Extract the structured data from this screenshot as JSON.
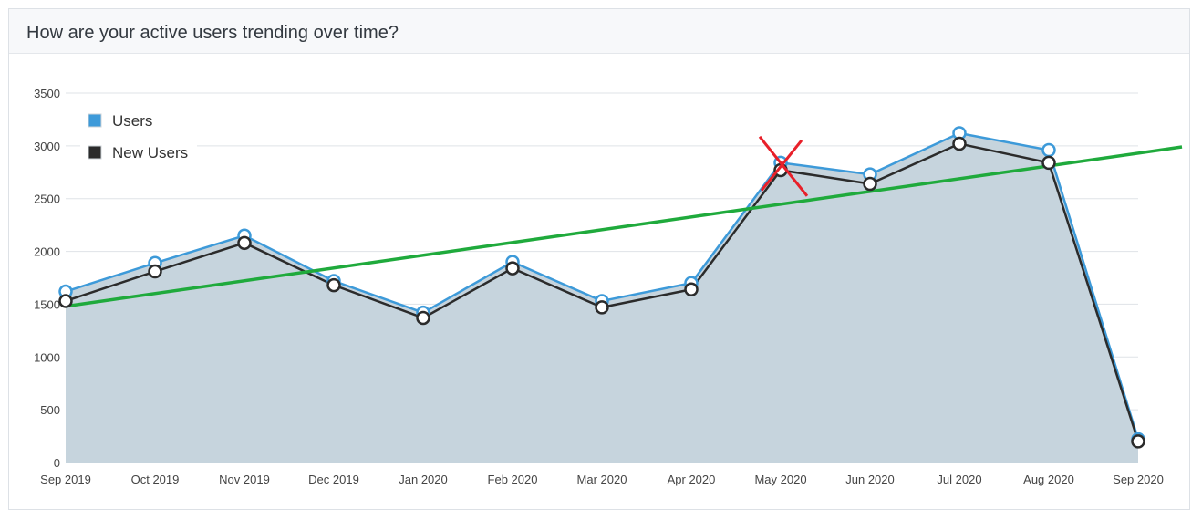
{
  "panel": {
    "title": "How are your active users trending over time?"
  },
  "chart_data": {
    "type": "area",
    "title": "How are your active users trending over time?",
    "categories": [
      "Sep 2019",
      "Oct 2019",
      "Nov 2019",
      "Dec 2019",
      "Jan 2020",
      "Feb 2020",
      "Mar 2020",
      "Apr 2020",
      "May 2020",
      "Jun 2020",
      "Jul 2020",
      "Aug 2020",
      "Sep 2020"
    ],
    "series": [
      {
        "name": "Users",
        "color": "#3d9ad9",
        "values": [
          1620,
          1890,
          2150,
          1720,
          1420,
          1900,
          1530,
          1700,
          2840,
          2730,
          3120,
          2960,
          220
        ]
      },
      {
        "name": "New Users",
        "color": "#2b2b2b",
        "values": [
          1530,
          1810,
          2080,
          1680,
          1370,
          1840,
          1470,
          1640,
          2770,
          2640,
          3020,
          2840,
          200
        ]
      }
    ],
    "trendline": {
      "color": "#1faa3c",
      "start": 1480,
      "end": 2990
    },
    "marker": {
      "category": "May 2020",
      "value": 2810,
      "symbol": "x",
      "color": "#e8202a"
    },
    "ylim": [
      0,
      3500
    ],
    "yticks": [
      0,
      500,
      1000,
      1500,
      2000,
      2500,
      3000,
      3500
    ],
    "grid": true,
    "legend_position": "top-left",
    "area_color": "#c6d4dd"
  }
}
